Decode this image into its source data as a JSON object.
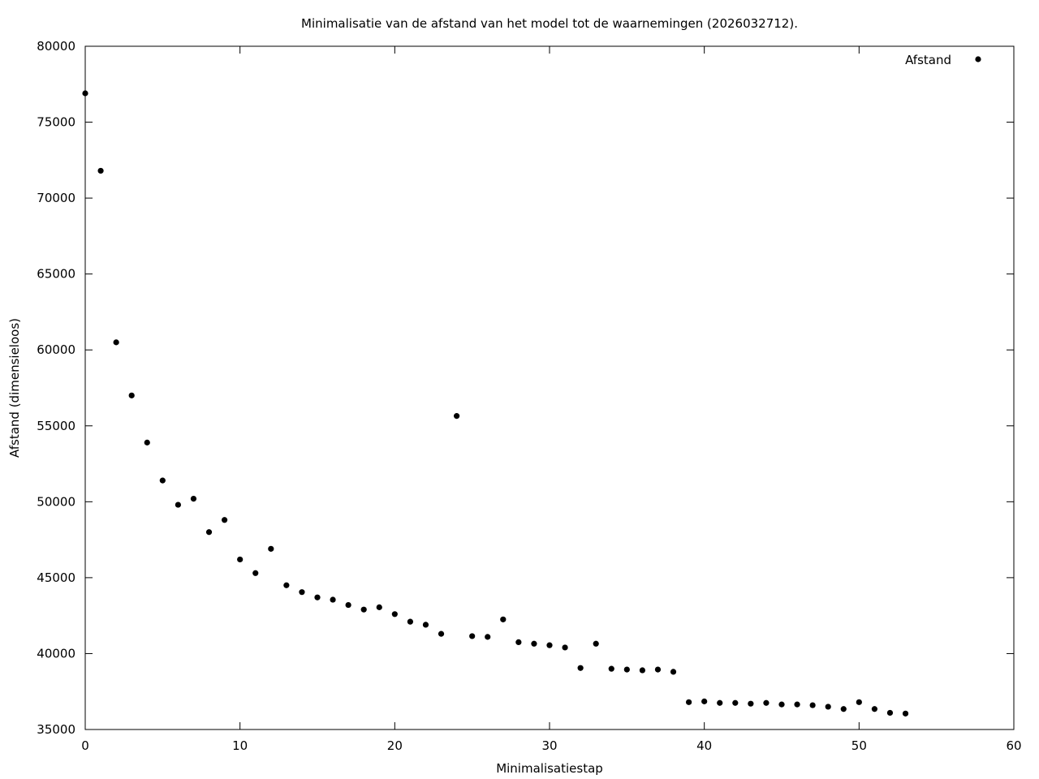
{
  "chart_data": {
    "type": "scatter",
    "title": "Minimalisatie van de afstand van het model tot de waarnemingen (2026032712).",
    "xlabel": "Minimalisatiestap",
    "ylabel": "Afstand (dimensieloos)",
    "xlim": [
      0,
      60
    ],
    "ylim": [
      35000,
      80000
    ],
    "x_ticks": [
      "0",
      "10",
      "20",
      "30",
      "40",
      "50",
      "60"
    ],
    "y_ticks": [
      "35000",
      "40000",
      "45000",
      "50000",
      "55000",
      "60000",
      "65000",
      "70000",
      "75000",
      "80000"
    ],
    "grid": false,
    "legend_position": "top-right",
    "series": [
      {
        "name": "Afstand",
        "color": "#000000",
        "marker": "filled-circle",
        "x": [
          0,
          1,
          2,
          3,
          4,
          5,
          6,
          7,
          8,
          9,
          10,
          11,
          12,
          13,
          14,
          15,
          16,
          17,
          18,
          19,
          20,
          21,
          22,
          23,
          24,
          25,
          26,
          27,
          28,
          29,
          30,
          31,
          32,
          33,
          34,
          35,
          36,
          37,
          38,
          39,
          40,
          41,
          42,
          43,
          44,
          45,
          46,
          47,
          48,
          49,
          50,
          51,
          52,
          53
        ],
        "y": [
          76900,
          71800,
          60500,
          57000,
          53900,
          51400,
          49800,
          50200,
          48000,
          48800,
          46200,
          45300,
          46900,
          44500,
          44050,
          43700,
          43550,
          43200,
          42900,
          43050,
          42600,
          42100,
          41900,
          41300,
          55650,
          41150,
          41100,
          42250,
          40750,
          40650,
          40550,
          40400,
          39050,
          40650,
          39000,
          38950,
          38900,
          38950,
          38800,
          36800,
          36850,
          36750,
          36750,
          36700,
          36750,
          36650,
          36650,
          36600,
          36500,
          36350,
          36800,
          36350,
          36100,
          36050
        ]
      }
    ]
  }
}
